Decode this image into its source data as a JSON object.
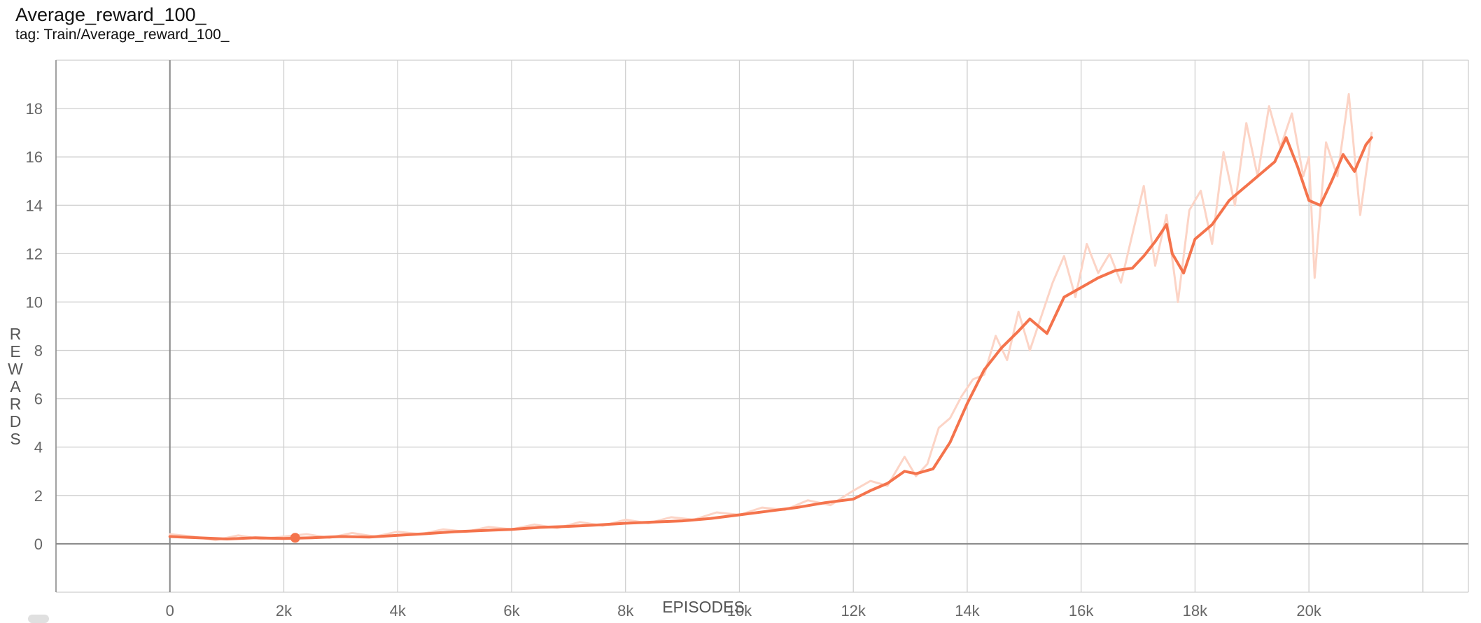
{
  "card": {
    "title": "Average_reward_100_",
    "tag": "tag: Train/Average_reward_100_"
  },
  "colors": {
    "line": "#f4734c",
    "raw": "#fcd4c6",
    "grid": "#cfcfcf",
    "axis": "#888888"
  },
  "chart_data": {
    "type": "line",
    "title": "Average_reward_100_",
    "xlabel": "EPISODES",
    "ylabel": "REWARDS",
    "xlim": [
      -2000,
      22800
    ],
    "ylim": [
      -2,
      20
    ],
    "x_ticks": [
      0,
      2000,
      4000,
      6000,
      8000,
      10000,
      12000,
      14000,
      16000,
      18000,
      20000
    ],
    "x_tick_labels": [
      "0",
      "2k",
      "4k",
      "6k",
      "8k",
      "10k",
      "12k",
      "14k",
      "16k",
      "18k",
      "20k"
    ],
    "y_ticks": [
      0,
      2,
      4,
      6,
      8,
      10,
      12,
      14,
      16,
      18
    ],
    "y_tick_labels": [
      "0",
      "2",
      "4",
      "6",
      "8",
      "10",
      "12",
      "14",
      "16",
      "18"
    ],
    "grid": true,
    "highlight_point": {
      "x": 2200,
      "y": 0.25
    },
    "series": [
      {
        "role": "smoothed",
        "x": [
          0,
          500,
          1000,
          1500,
          2000,
          2500,
          3000,
          3500,
          4000,
          4500,
          5000,
          5500,
          6000,
          6500,
          7000,
          7500,
          8000,
          8500,
          9000,
          9500,
          10000,
          10500,
          11000,
          11500,
          12000,
          12300,
          12600,
          12900,
          13100,
          13400,
          13700,
          14000,
          14300,
          14600,
          14900,
          15100,
          15400,
          15700,
          16000,
          16300,
          16600,
          16900,
          17100,
          17300,
          17500,
          17600,
          17800,
          18000,
          18300,
          18600,
          18900,
          19200,
          19400,
          19600,
          19800,
          20000,
          20200,
          20400,
          20600,
          20800,
          21000,
          21100
        ],
        "y": [
          0.3,
          0.25,
          0.2,
          0.25,
          0.22,
          0.25,
          0.3,
          0.28,
          0.35,
          0.42,
          0.5,
          0.55,
          0.6,
          0.68,
          0.72,
          0.78,
          0.85,
          0.9,
          0.95,
          1.05,
          1.2,
          1.35,
          1.5,
          1.7,
          1.85,
          2.2,
          2.5,
          3.0,
          2.9,
          3.1,
          4.2,
          5.8,
          7.2,
          8.1,
          8.8,
          9.3,
          8.7,
          10.2,
          10.6,
          11.0,
          11.3,
          11.4,
          11.9,
          12.5,
          13.2,
          12.0,
          11.2,
          12.6,
          13.2,
          14.2,
          14.8,
          15.4,
          15.8,
          16.8,
          15.6,
          14.2,
          14.0,
          15.0,
          16.1,
          15.4,
          16.5,
          16.8
        ]
      },
      {
        "role": "raw",
        "x": [
          0,
          400,
          800,
          1200,
          1600,
          2000,
          2400,
          2800,
          3200,
          3600,
          4000,
          4400,
          4800,
          5200,
          5600,
          6000,
          6400,
          6800,
          7200,
          7600,
          8000,
          8400,
          8800,
          9200,
          9600,
          10000,
          10400,
          10800,
          11200,
          11600,
          12000,
          12300,
          12600,
          12900,
          13100,
          13300,
          13500,
          13700,
          13900,
          14100,
          14300,
          14500,
          14700,
          14900,
          15100,
          15300,
          15500,
          15700,
          15900,
          16100,
          16300,
          16500,
          16700,
          16900,
          17100,
          17300,
          17500,
          17700,
          17900,
          18100,
          18300,
          18500,
          18700,
          18900,
          19100,
          19300,
          19500,
          19700,
          19900,
          20000,
          20100,
          20300,
          20500,
          20700,
          20900,
          21100
        ],
        "y": [
          0.4,
          0.3,
          0.15,
          0.35,
          0.2,
          0.3,
          0.4,
          0.25,
          0.45,
          0.3,
          0.5,
          0.4,
          0.6,
          0.5,
          0.7,
          0.6,
          0.8,
          0.65,
          0.9,
          0.75,
          1.0,
          0.85,
          1.1,
          1.0,
          1.3,
          1.2,
          1.5,
          1.4,
          1.8,
          1.6,
          2.2,
          2.6,
          2.4,
          3.6,
          2.8,
          3.3,
          4.8,
          5.2,
          6.1,
          6.8,
          7.0,
          8.6,
          7.6,
          9.6,
          8.0,
          9.4,
          10.8,
          11.9,
          10.2,
          12.4,
          11.2,
          12.0,
          10.8,
          12.8,
          14.8,
          11.5,
          13.6,
          10.0,
          13.8,
          14.6,
          12.4,
          16.2,
          14.0,
          17.4,
          15.2,
          18.1,
          16.4,
          17.8,
          15.2,
          16.0,
          11.0,
          16.6,
          15.2,
          18.6,
          13.6,
          17.0
        ]
      }
    ]
  }
}
